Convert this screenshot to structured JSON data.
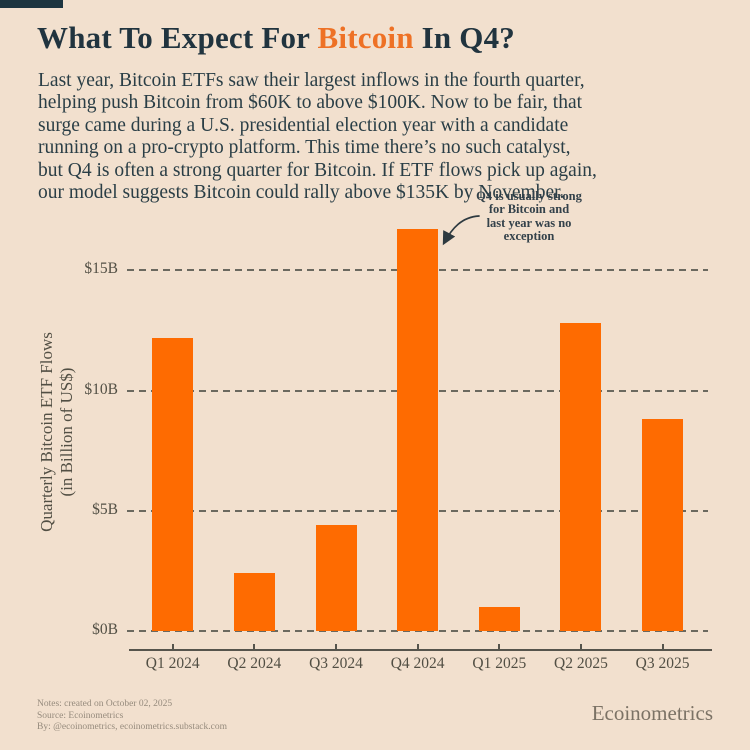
{
  "page": {
    "title": {
      "pre": "What To Expect For ",
      "highlight": "Bitcoin",
      "post": " In Q4?"
    },
    "intro_lines": [
      "Last year, Bitcoin ETFs saw their largest inflows in the fourth quarter,",
      "helping push Bitcoin from $60K to above $100K. Now to be fair, that",
      "surge came during a U.S. presidential election year with a candidate",
      "running on a pro-crypto platform. This time there’s no such catalyst,",
      "but Q4 is often a strong quarter for Bitcoin. If ETF flows pick up again,",
      "our model suggests Bitcoin could rally above $135K by November."
    ],
    "footer": {
      "notes": [
        "Notes: created on October 02, 2025",
        "Source: Ecoinometrics",
        "By: @ecoinometrics, ecoinometrics.substack.com"
      ],
      "brand": "Ecoinometrics"
    }
  },
  "colors": {
    "background": "#f2e0ce",
    "bar": "#fe6b01",
    "title_dark": "#21343f",
    "accent_orange": "#ee7125",
    "axis_text": "#524f44",
    "gridline": "#6b695f",
    "footer_text": "#968b7d",
    "corner_block": "#1d3540"
  },
  "chart_data": {
    "type": "bar",
    "title": "",
    "categories": [
      "Q1 2024",
      "Q2 2024",
      "Q3 2024",
      "Q4 2024",
      "Q1 2025",
      "Q2 2025",
      "Q3 2025"
    ],
    "values": [
      12.2,
      2.4,
      4.4,
      16.7,
      1.0,
      12.8,
      8.8
    ],
    "xlabel": "",
    "ylabel": "Quarterly Bitcoin ETF Flows",
    "ylabel_sub": "(in Billion of US$)",
    "yticks": [
      {
        "value": 0,
        "label": "$0B"
      },
      {
        "value": 5,
        "label": "$5B"
      },
      {
        "value": 10,
        "label": "$10B"
      },
      {
        "value": 15,
        "label": "$15B"
      }
    ],
    "ylim": [
      0,
      17.5
    ],
    "grid": "dashed horizontal",
    "legend": "none",
    "annotation": {
      "lines": [
        "Q4 is usually strong",
        "for Bitcoin and",
        "last year was no",
        "exception"
      ],
      "target": "Q4 2024"
    }
  }
}
